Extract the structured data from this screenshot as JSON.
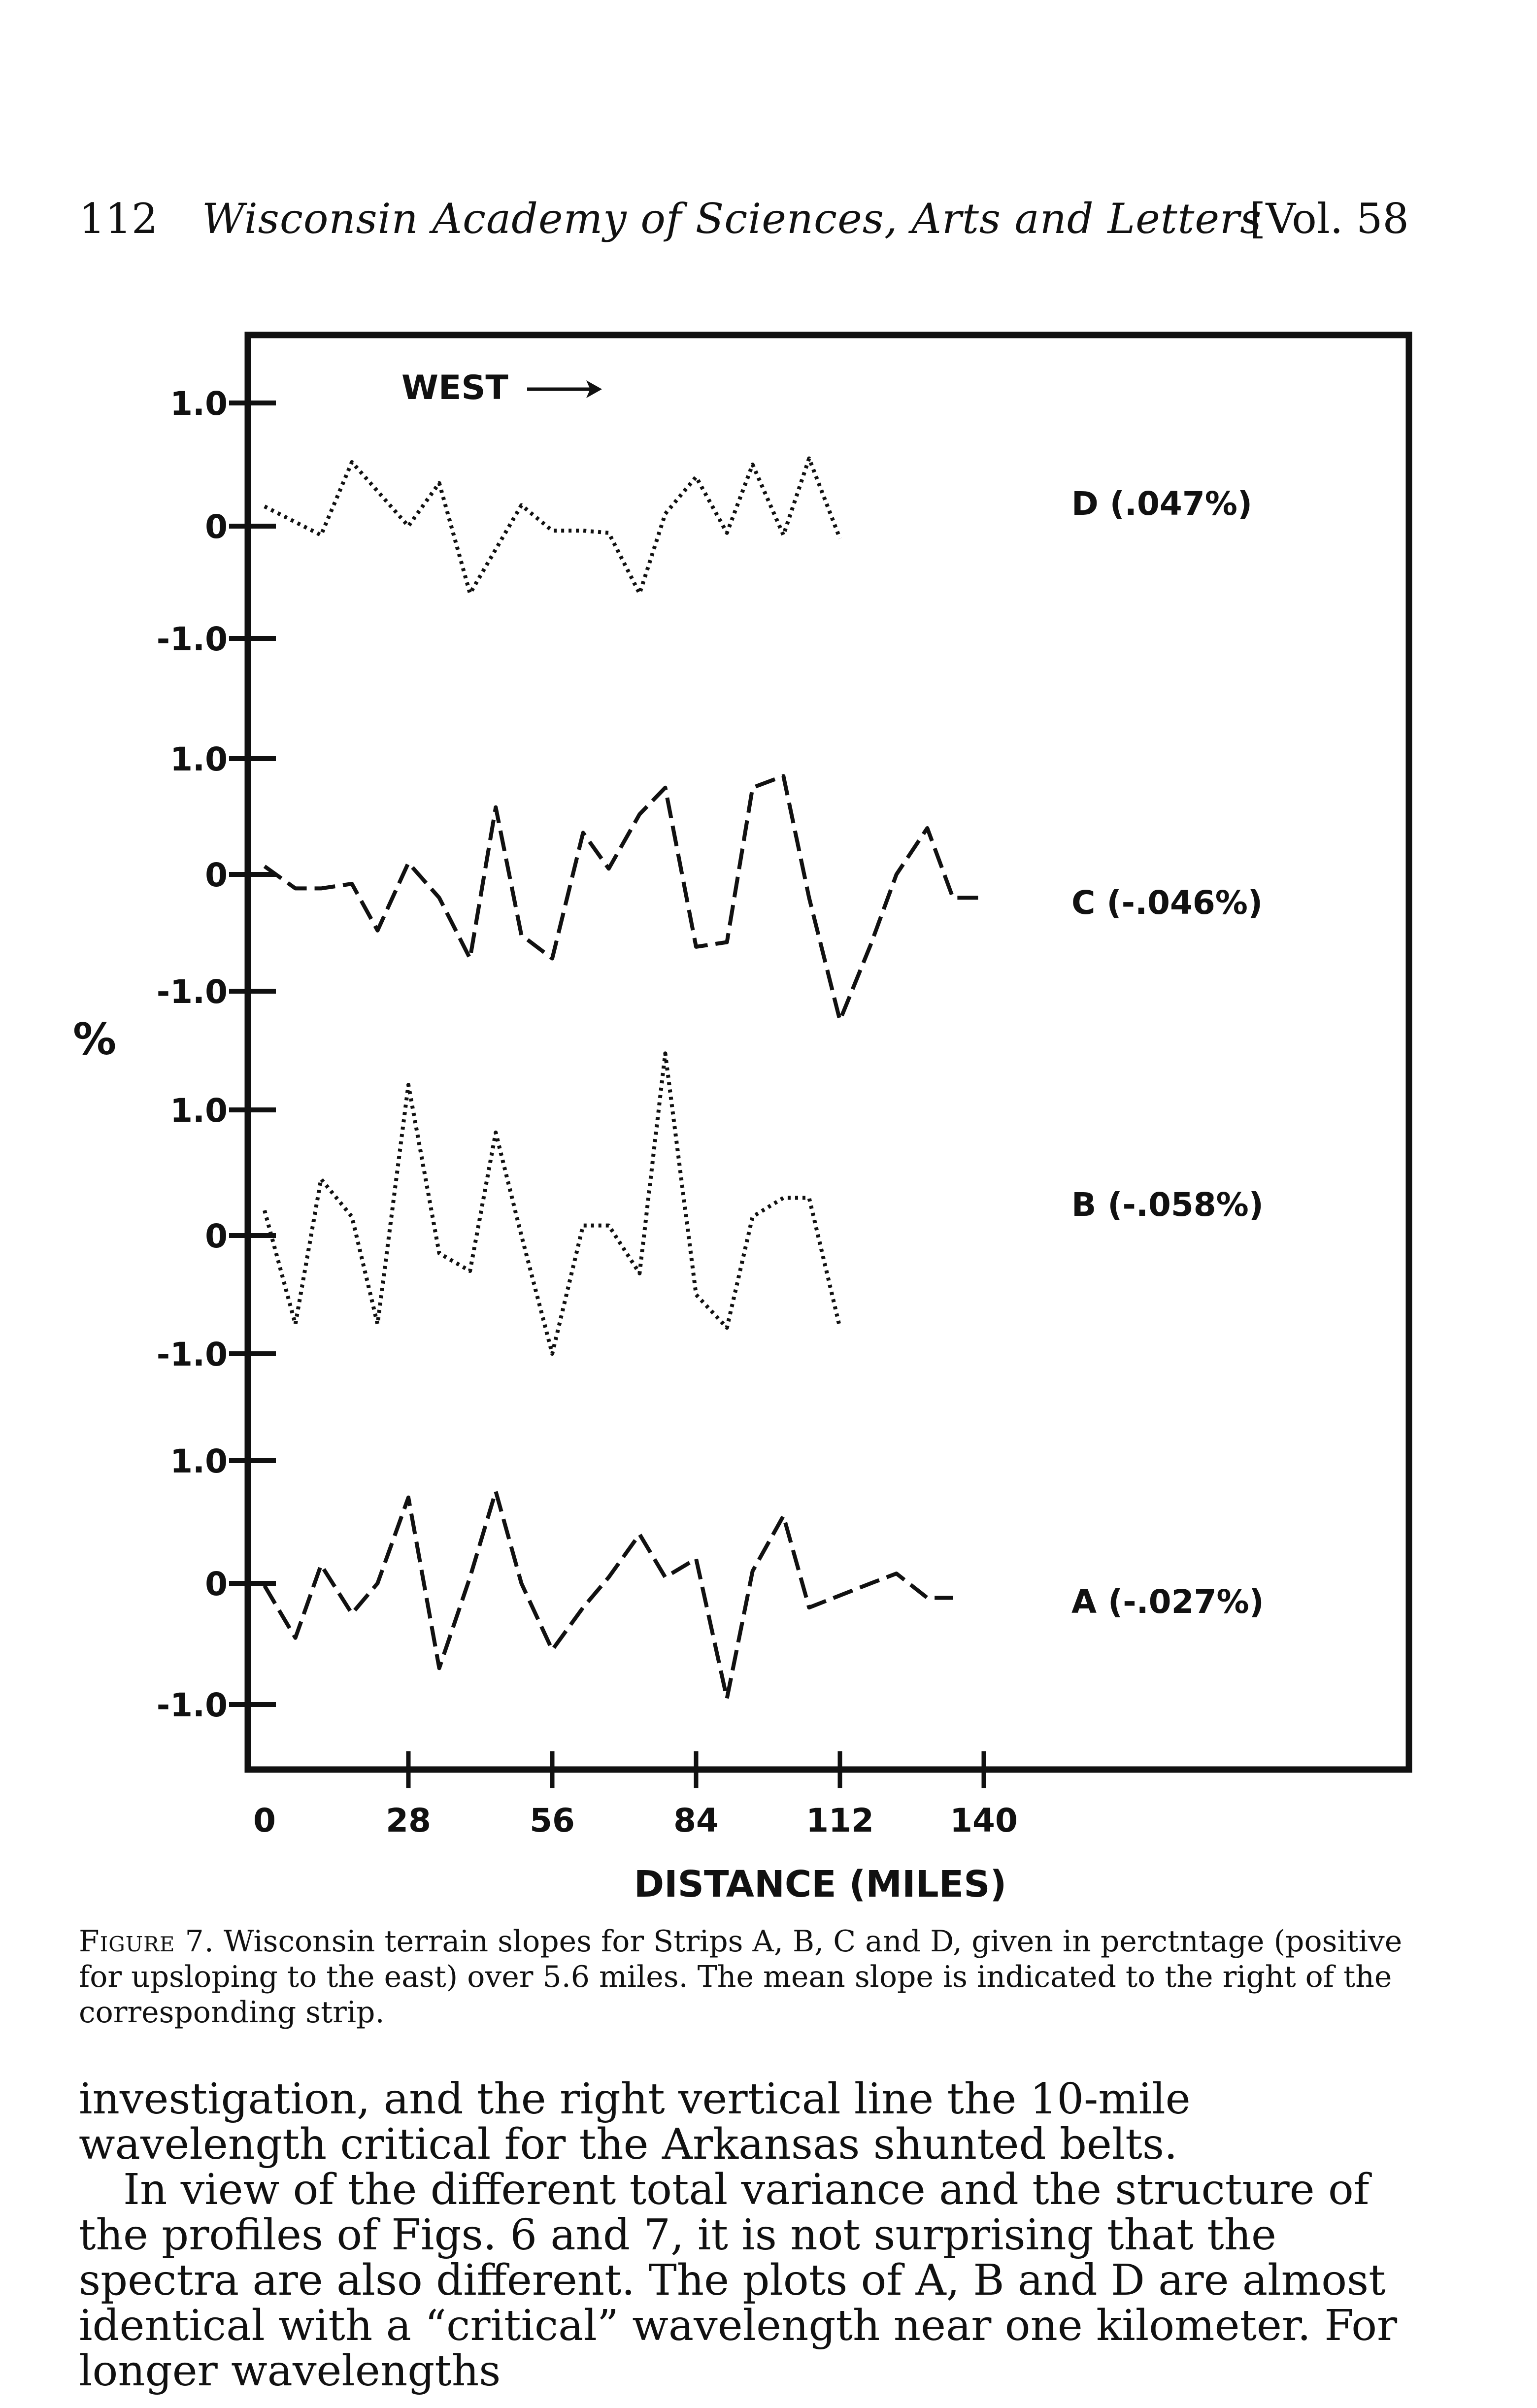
{
  "header": {
    "page_number": "112",
    "journal": "Wisconsin Academy of Sciences, Arts and Letters",
    "volume": "[Vol. 58"
  },
  "figure": {
    "y_unit_label": "%",
    "direction_label": "WEST",
    "xlabel": "DISTANCE (MILES)",
    "x_ticks": [
      "0",
      "28",
      "56",
      "84",
      "112",
      "140"
    ]
  },
  "chart_data": {
    "type": "line",
    "xlabel": "DISTANCE (MILES)",
    "ylabel": "%",
    "xlim": [
      0,
      140
    ],
    "ylim": [
      -1.0,
      1.0
    ],
    "x_ticks": [
      0,
      28,
      56,
      84,
      112,
      140
    ],
    "y_ticks": [
      "1.0",
      "0",
      "-1.0"
    ],
    "series": [
      {
        "name": "D",
        "mean_label": "D (.047%)",
        "style": "dotted",
        "x": [
          0,
          11,
          17,
          28,
          34,
          40,
          50,
          56,
          62,
          67,
          73,
          78,
          84,
          90,
          95,
          101,
          106,
          112
        ],
        "y": [
          0.16,
          -0.08,
          0.52,
          0.0,
          0.35,
          -0.6,
          0.17,
          -0.04,
          -0.04,
          -0.06,
          -0.6,
          0.1,
          0.4,
          -0.06,
          0.5,
          -0.08,
          0.55,
          -0.11
        ]
      },
      {
        "name": "C",
        "mean_label": "C (-.046%)",
        "style": "dashed",
        "x": [
          0,
          6,
          11,
          17,
          22,
          28,
          34,
          40,
          45,
          50,
          56,
          62,
          67,
          73,
          78,
          84,
          90,
          95,
          101,
          106,
          112,
          118,
          123,
          129,
          134,
          140
        ],
        "y": [
          0.07,
          -0.12,
          -0.12,
          -0.08,
          -0.48,
          0.1,
          -0.2,
          -0.72,
          0.58,
          -0.52,
          -0.72,
          0.36,
          0.05,
          0.52,
          0.75,
          -0.62,
          -0.58,
          0.75,
          0.85,
          -0.2,
          -1.25,
          -0.6,
          0.0,
          0.4,
          -0.2,
          -0.2
        ]
      },
      {
        "name": "B",
        "mean_label": "B (-.058%)",
        "style": "dotted",
        "x": [
          0,
          6,
          11,
          17,
          22,
          28,
          34,
          40,
          45,
          50,
          56,
          62,
          67,
          73,
          78,
          84,
          90,
          95,
          101,
          106,
          112
        ],
        "y": [
          0.2,
          -0.75,
          0.45,
          0.15,
          -0.75,
          1.2,
          -0.15,
          -0.3,
          0.82,
          0.0,
          -1.0,
          0.08,
          0.08,
          -0.32,
          1.45,
          -0.5,
          -0.78,
          0.15,
          0.3,
          0.3,
          -0.78
        ]
      },
      {
        "name": "A",
        "mean_label": "A (-.027%)",
        "style": "dashed",
        "x": [
          0,
          6,
          11,
          17,
          22,
          28,
          34,
          40,
          45,
          50,
          56,
          62,
          67,
          73,
          78,
          84,
          90,
          95,
          101,
          106,
          112,
          118,
          123,
          129,
          134
        ],
        "y": [
          -0.02,
          -0.45,
          0.15,
          -0.25,
          0.0,
          0.7,
          -0.7,
          0.05,
          0.75,
          0.0,
          -0.55,
          -0.2,
          0.05,
          0.4,
          0.05,
          0.2,
          -0.95,
          0.1,
          0.55,
          -0.2,
          -0.1,
          0.0,
          0.08,
          -0.12,
          -0.12
        ]
      }
    ]
  },
  "caption": {
    "figure_label": "Figure 7.",
    "text": " Wisconsin terrain slopes for Strips A, B, C and D, given in perctntage (positive for upsloping to the east) over 5.6 miles. The mean slope is indicated to the right of the corresponding strip."
  },
  "body": {
    "para1": "investigation, and the right vertical line the 10-mile wavelength critical for the Arkansas shunted belts.",
    "para2": "In view of the different total variance and the structure of the profiles of Figs. 6 and 7, it is not surprising that the spectra are also different. The plots of A, B and D are almost identical with a “critical” wavelength near one kilometer. For longer wavelengths"
  }
}
